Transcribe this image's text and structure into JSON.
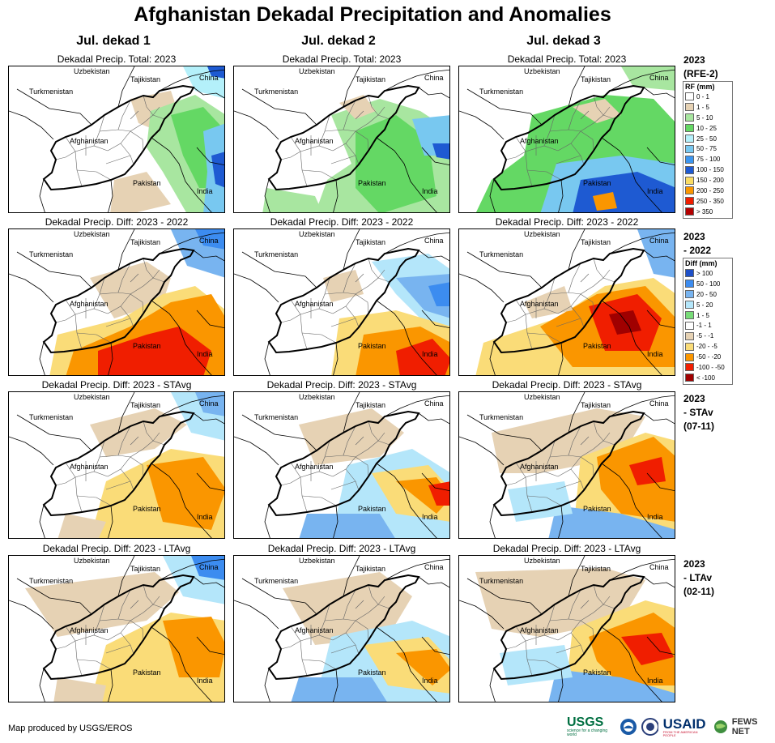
{
  "title": "Afghanistan Dekadal Precipitation and Anomalies",
  "columns": [
    "Jul. dekad 1",
    "Jul. dekad 2",
    "Jul. dekad 3"
  ],
  "rows": [
    {
      "panel_title": "Dekadal Precip. Total: 2023",
      "label_lines": [
        "2023",
        "(RFE-2)"
      ],
      "kind": "total"
    },
    {
      "panel_title": "Dekadal Precip. Diff: 2023 - 2022",
      "label_lines": [
        "2023",
        "- 2022"
      ],
      "kind": "diff"
    },
    {
      "panel_title": "Dekadal Precip. Diff: 2023 - STAvg",
      "label_lines": [
        "2023",
        "- STAv",
        "(07-11)"
      ],
      "kind": "diff"
    },
    {
      "panel_title": "Dekadal Precip. Diff: 2023 - LTAvg",
      "label_lines": [
        "2023",
        "- LTAv",
        "(02-11)"
      ],
      "kind": "diff"
    }
  ],
  "map_labels": {
    "uzbekistan": "Uzbekistan",
    "tajikistan": "Tajikistan",
    "turkmenistan": "Turkmenistan",
    "china": "China",
    "afghanistan": "Afghanistan",
    "pakistan": "Pakistan",
    "india": "India"
  },
  "rf_legend": {
    "header": "RF (mm)",
    "items": [
      {
        "label": "0 - 1",
        "color": "#ffffff"
      },
      {
        "label": "1 - 5",
        "color": "#e6d2b4"
      },
      {
        "label": "5 - 10",
        "color": "#a8e6a0"
      },
      {
        "label": "10 - 25",
        "color": "#64d864"
      },
      {
        "label": "25 - 50",
        "color": "#b4f0fa"
      },
      {
        "label": "50 - 75",
        "color": "#78c8f0"
      },
      {
        "label": "75 - 100",
        "color": "#3c96f0"
      },
      {
        "label": "100 - 150",
        "color": "#1e5ad2"
      },
      {
        "label": "150 - 200",
        "color": "#fadc64"
      },
      {
        "label": "200 - 250",
        "color": "#fa9600"
      },
      {
        "label": "250 - 350",
        "color": "#f01e00"
      },
      {
        "label": "> 350",
        "color": "#b40000"
      }
    ]
  },
  "diff_legend": {
    "header": "Diff (mm)",
    "items": [
      {
        "label": "> 100",
        "color": "#1e50c8"
      },
      {
        "label": "50 - 100",
        "color": "#3c8cf0"
      },
      {
        "label": "20 - 50",
        "color": "#78b4f0"
      },
      {
        "label": "5 - 20",
        "color": "#b4e6fa"
      },
      {
        "label": "1 - 5",
        "color": "#78dc78"
      },
      {
        "label": "-1 - 1",
        "color": "#ffffff"
      },
      {
        "label": "-5 - -1",
        "color": "#e6d2b4"
      },
      {
        "label": "-20 - -5",
        "color": "#fadc78"
      },
      {
        "label": "-50 - -20",
        "color": "#fa9600"
      },
      {
        "label": "-100 - -50",
        "color": "#f01e00"
      },
      {
        "label": "< -100",
        "color": "#a00000"
      }
    ]
  },
  "footer": "Map produced by USGS/EROS",
  "logos": {
    "usgs": "USGS",
    "usgs_tagline": "science for a changing world",
    "usaid": "USAID",
    "usaid_tagline": "FROM THE AMERICAN PEOPLE",
    "fewsnet": "FEWS NET"
  }
}
